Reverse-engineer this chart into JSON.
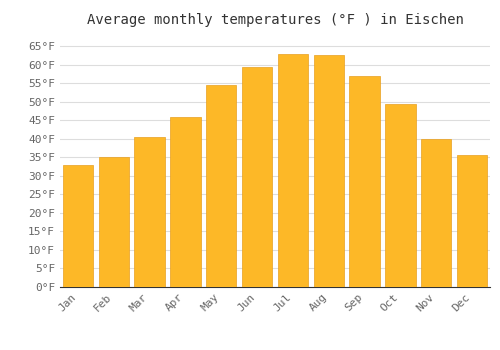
{
  "title": "Average monthly temperatures (°F ) in Eischen",
  "months": [
    "Jan",
    "Feb",
    "Mar",
    "Apr",
    "May",
    "Jun",
    "Jul",
    "Aug",
    "Sep",
    "Oct",
    "Nov",
    "Dec"
  ],
  "values": [
    33,
    35,
    40.5,
    46,
    54.5,
    59.5,
    63,
    62.5,
    57,
    49.5,
    40,
    35.5
  ],
  "bar_color": "#FDB827",
  "bar_edge_color": "#E8A020",
  "background_color": "#ffffff",
  "grid_color": "#dddddd",
  "yticks": [
    0,
    5,
    10,
    15,
    20,
    25,
    30,
    35,
    40,
    45,
    50,
    55,
    60,
    65
  ],
  "ylim": [
    0,
    68
  ],
  "title_fontsize": 10,
  "tick_fontsize": 8,
  "tick_color": "#666666"
}
